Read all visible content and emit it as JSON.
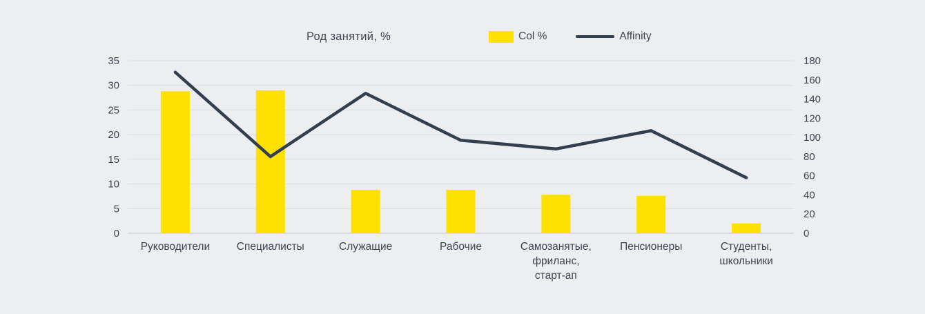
{
  "chart_data": {
    "type": "bar",
    "title": "Род занятий, %",
    "categories": [
      "Руководители",
      "Специалисты",
      "Служащие",
      "Рабочие",
      "Самозанятые,\nфриланс,\nстарт-ап",
      "Пенсионеры",
      "Студенты,\nшкольники"
    ],
    "series": [
      {
        "name": "Col %",
        "type": "bar",
        "axis": "left",
        "color": "#ffe100",
        "values": [
          28.8,
          29.0,
          8.8,
          8.8,
          7.8,
          7.6,
          2.0
        ]
      },
      {
        "name": "Affinity",
        "type": "line",
        "axis": "right",
        "color": "#333f50",
        "values": [
          168,
          80,
          146,
          97,
          88,
          107,
          58
        ]
      }
    ],
    "left_axis": {
      "min": 0,
      "max": 35,
      "ticks": [
        0,
        5,
        10,
        15,
        20,
        25,
        30,
        35
      ]
    },
    "right_axis": {
      "min": 0,
      "max": 180,
      "ticks": [
        0,
        20,
        40,
        60,
        80,
        100,
        120,
        140,
        160,
        180
      ]
    },
    "grid": true,
    "legend_position": "top",
    "background_color": "#eceef0",
    "gridline_color": "#dcdfe3",
    "baseline_color": "#c3c7cd"
  }
}
